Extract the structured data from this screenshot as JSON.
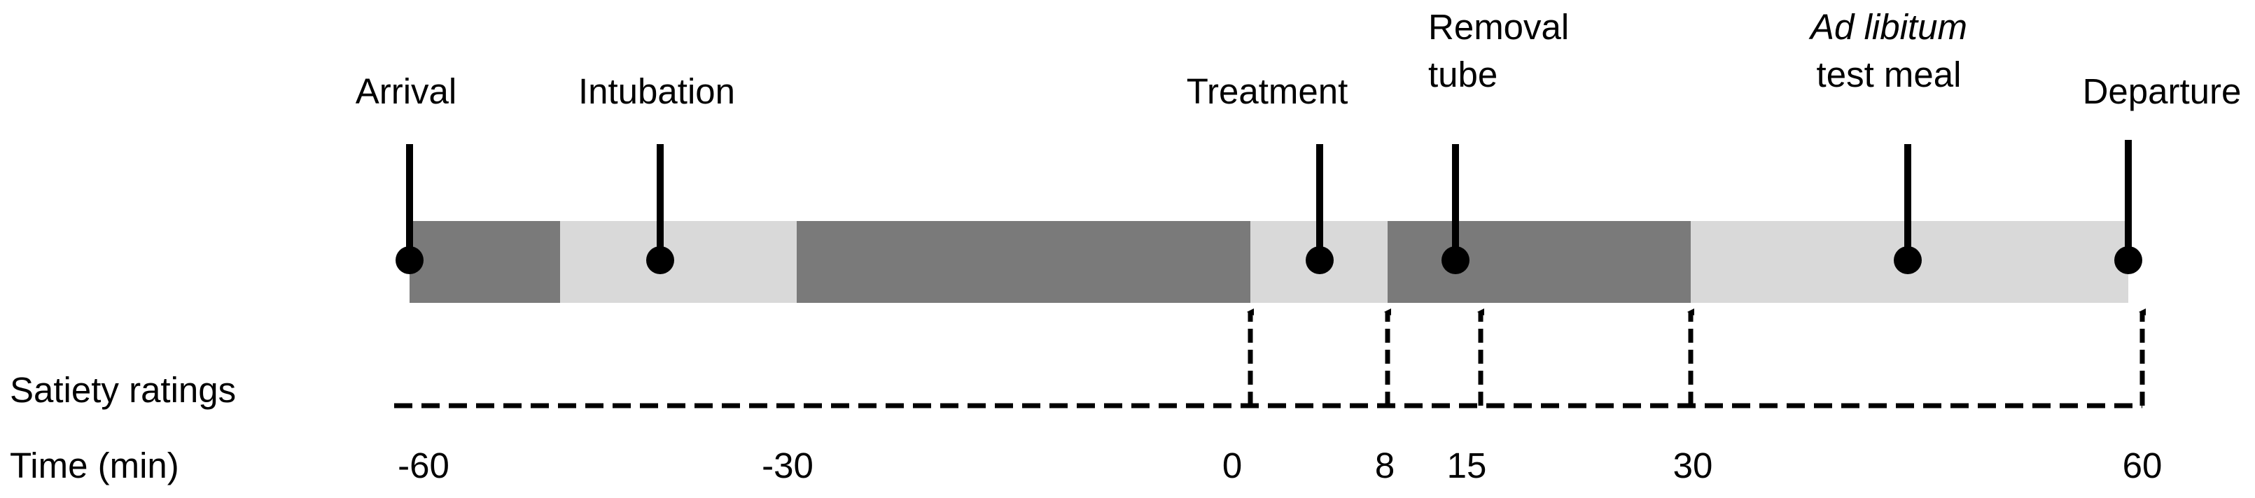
{
  "events": [
    {
      "id": "arrival",
      "lines": [
        "Arrival"
      ]
    },
    {
      "id": "intubation",
      "lines": [
        "Intubation"
      ]
    },
    {
      "id": "treatment",
      "lines": [
        "Treatment"
      ]
    },
    {
      "id": "removal-tube",
      "lines": [
        "Removal",
        "tube"
      ]
    },
    {
      "id": "ad-libitum",
      "lines": [
        "Ad libitum",
        "test meal"
      ],
      "italic_first_line": true
    },
    {
      "id": "departure",
      "lines": [
        "Departure"
      ]
    }
  ],
  "rows": {
    "satiety_label": "Satiety ratings",
    "time_label": "Time (min)"
  },
  "time_ticks": [
    "-60",
    "-30",
    "0",
    "8",
    "15",
    "30",
    "60"
  ],
  "colors": {
    "dark_segment": "#7a7a7a",
    "light_segment": "#d9d9d9",
    "marker": "#000000"
  }
}
